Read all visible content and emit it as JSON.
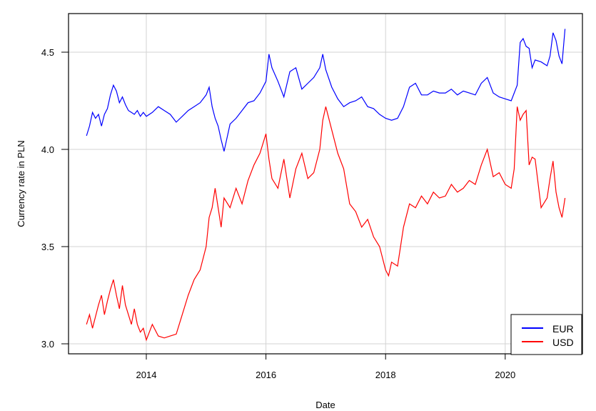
{
  "chart_data": {
    "type": "line",
    "title": "",
    "xlabel": "Date",
    "ylabel": "Currency rate in PLN",
    "xlim": [
      2012.9,
      2021.1
    ],
    "ylim": [
      2.96,
      4.71
    ],
    "grid": true,
    "legend_position": "bottom-right",
    "x_ticks": [
      2014,
      2016,
      2018,
      2020
    ],
    "x_tick_labels": [
      "2014",
      "2016",
      "2018",
      "2020"
    ],
    "y_ticks": [
      3.0,
      3.5,
      4.0,
      4.5
    ],
    "y_tick_labels": [
      "3.0",
      "3.5",
      "4.0",
      "4.5"
    ],
    "series": [
      {
        "name": "EUR",
        "color": "#0000ff",
        "x": [
          2013.0,
          2013.05,
          2013.1,
          2013.15,
          2013.2,
          2013.25,
          2013.3,
          2013.35,
          2013.4,
          2013.45,
          2013.5,
          2013.55,
          2013.6,
          2013.65,
          2013.7,
          2013.75,
          2013.8,
          2013.85,
          2013.9,
          2013.95,
          2014.0,
          2014.1,
          2014.2,
          2014.3,
          2014.4,
          2014.5,
          2014.6,
          2014.7,
          2014.8,
          2014.9,
          2015.0,
          2015.05,
          2015.1,
          2015.15,
          2015.2,
          2015.25,
          2015.3,
          2015.35,
          2015.4,
          2015.5,
          2015.6,
          2015.7,
          2015.8,
          2015.9,
          2016.0,
          2016.05,
          2016.1,
          2016.2,
          2016.3,
          2016.4,
          2016.5,
          2016.6,
          2016.7,
          2016.8,
          2016.9,
          2016.95,
          2017.0,
          2017.1,
          2017.2,
          2017.3,
          2017.4,
          2017.5,
          2017.6,
          2017.7,
          2017.8,
          2017.9,
          2018.0,
          2018.1,
          2018.2,
          2018.3,
          2018.4,
          2018.5,
          2018.6,
          2018.7,
          2018.8,
          2018.9,
          2019.0,
          2019.1,
          2019.2,
          2019.3,
          2019.4,
          2019.5,
          2019.6,
          2019.7,
          2019.8,
          2019.9,
          2020.0,
          2020.1,
          2020.15,
          2020.2,
          2020.25,
          2020.3,
          2020.35,
          2020.4,
          2020.45,
          2020.5,
          2020.6,
          2020.7,
          2020.75,
          2020.8,
          2020.85,
          2020.9,
          2020.95,
          2021.0
        ],
        "values": [
          4.07,
          4.12,
          4.19,
          4.16,
          4.18,
          4.12,
          4.18,
          4.21,
          4.28,
          4.33,
          4.3,
          4.24,
          4.27,
          4.23,
          4.2,
          4.19,
          4.18,
          4.2,
          4.17,
          4.19,
          4.17,
          4.19,
          4.22,
          4.2,
          4.18,
          4.14,
          4.17,
          4.2,
          4.22,
          4.24,
          4.28,
          4.32,
          4.22,
          4.16,
          4.12,
          4.05,
          3.99,
          4.06,
          4.13,
          4.16,
          4.2,
          4.24,
          4.25,
          4.29,
          4.35,
          4.49,
          4.42,
          4.35,
          4.27,
          4.4,
          4.42,
          4.31,
          4.34,
          4.37,
          4.42,
          4.49,
          4.41,
          4.32,
          4.26,
          4.22,
          4.24,
          4.25,
          4.27,
          4.22,
          4.21,
          4.18,
          4.16,
          4.15,
          4.16,
          4.22,
          4.32,
          4.34,
          4.28,
          4.28,
          4.3,
          4.29,
          4.29,
          4.31,
          4.28,
          4.3,
          4.29,
          4.28,
          4.34,
          4.37,
          4.29,
          4.27,
          4.26,
          4.25,
          4.29,
          4.33,
          4.55,
          4.57,
          4.53,
          4.52,
          4.42,
          4.46,
          4.45,
          4.43,
          4.48,
          4.6,
          4.56,
          4.48,
          4.44,
          4.62
        ]
      },
      {
        "name": "USD",
        "color": "#ff0000",
        "x": [
          2013.0,
          2013.05,
          2013.1,
          2013.15,
          2013.2,
          2013.25,
          2013.3,
          2013.35,
          2013.4,
          2013.45,
          2013.5,
          2013.55,
          2013.6,
          2013.65,
          2013.7,
          2013.75,
          2013.8,
          2013.85,
          2013.9,
          2013.95,
          2014.0,
          2014.1,
          2014.2,
          2014.3,
          2014.4,
          2014.5,
          2014.6,
          2014.7,
          2014.8,
          2014.9,
          2015.0,
          2015.05,
          2015.1,
          2015.15,
          2015.2,
          2015.25,
          2015.3,
          2015.4,
          2015.5,
          2015.6,
          2015.7,
          2015.8,
          2015.9,
          2016.0,
          2016.05,
          2016.1,
          2016.2,
          2016.3,
          2016.4,
          2016.5,
          2016.6,
          2016.7,
          2016.8,
          2016.9,
          2016.95,
          2017.0,
          2017.1,
          2017.2,
          2017.3,
          2017.4,
          2017.5,
          2017.6,
          2017.7,
          2017.8,
          2017.9,
          2018.0,
          2018.05,
          2018.1,
          2018.2,
          2018.3,
          2018.4,
          2018.5,
          2018.6,
          2018.7,
          2018.8,
          2018.9,
          2019.0,
          2019.1,
          2019.2,
          2019.3,
          2019.4,
          2019.5,
          2019.6,
          2019.7,
          2019.8,
          2019.9,
          2020.0,
          2020.1,
          2020.15,
          2020.2,
          2020.25,
          2020.3,
          2020.35,
          2020.4,
          2020.45,
          2020.5,
          2020.6,
          2020.7,
          2020.75,
          2020.8,
          2020.85,
          2020.9,
          2020.95,
          2021.0
        ],
        "values": [
          3.1,
          3.15,
          3.08,
          3.14,
          3.2,
          3.25,
          3.15,
          3.22,
          3.28,
          3.33,
          3.25,
          3.18,
          3.3,
          3.2,
          3.15,
          3.1,
          3.18,
          3.1,
          3.06,
          3.08,
          3.02,
          3.1,
          3.04,
          3.03,
          3.04,
          3.05,
          3.15,
          3.25,
          3.33,
          3.38,
          3.5,
          3.65,
          3.7,
          3.8,
          3.7,
          3.6,
          3.75,
          3.7,
          3.8,
          3.72,
          3.84,
          3.92,
          3.98,
          4.08,
          3.95,
          3.85,
          3.8,
          3.95,
          3.75,
          3.9,
          3.98,
          3.85,
          3.88,
          4.0,
          4.15,
          4.22,
          4.1,
          3.98,
          3.9,
          3.72,
          3.68,
          3.6,
          3.64,
          3.55,
          3.5,
          3.38,
          3.35,
          3.42,
          3.4,
          3.6,
          3.72,
          3.7,
          3.76,
          3.72,
          3.78,
          3.75,
          3.76,
          3.82,
          3.78,
          3.8,
          3.84,
          3.82,
          3.92,
          4.0,
          3.86,
          3.88,
          3.82,
          3.8,
          3.9,
          4.22,
          4.15,
          4.18,
          4.2,
          3.92,
          3.96,
          3.95,
          3.7,
          3.75,
          3.85,
          3.94,
          3.78,
          3.7,
          3.65,
          3.75
        ]
      }
    ]
  },
  "legend": {
    "items": [
      {
        "label": "EUR",
        "color": "#0000ff"
      },
      {
        "label": "USD",
        "color": "#ff0000"
      }
    ]
  }
}
